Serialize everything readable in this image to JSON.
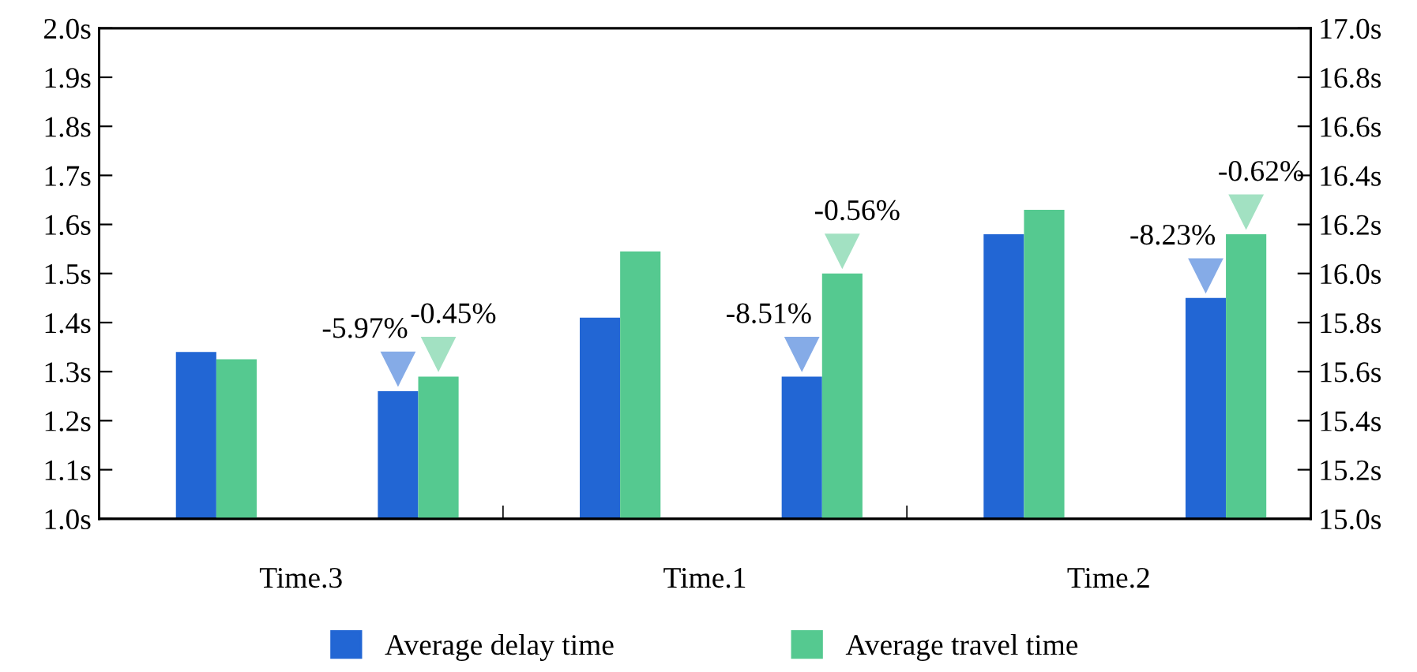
{
  "chart_data": {
    "type": "bar",
    "categories": [
      "Time.3",
      "Time.1",
      "Time.2"
    ],
    "series": [
      {
        "name": "Average delay time",
        "color": "#2266d4",
        "values": [
          1.34,
          1.41,
          1.58
        ]
      },
      {
        "name": "Average travel time",
        "color": "#55c990",
        "axis": "y2",
        "values": [
          15.65,
          16.09,
          16.26
        ]
      },
      {
        "color": "#2266d4",
        "values": [
          1.26,
          1.29,
          1.45
        ]
      },
      {
        "color": "#55c990",
        "axis": "y2",
        "values": [
          15.58,
          16.0,
          16.16
        ]
      }
    ],
    "annotations": [
      "-5.97%",
      "-8.51%",
      "-8.23%",
      "-0.45%",
      "-0.56%",
      "-0.62%"
    ],
    "ylim": [
      1.0,
      2.0
    ],
    "yticks": [
      {
        "value": 1.0,
        "label": "1.0s"
      },
      {
        "value": 1.1,
        "label": "1.1s"
      },
      {
        "value": 1.2,
        "label": "1.2s"
      },
      {
        "value": 1.3,
        "label": "1.3s"
      },
      {
        "value": 1.4,
        "label": "1.4s"
      },
      {
        "value": 1.5,
        "label": "1.5s"
      },
      {
        "value": 1.6,
        "label": "1.6s"
      },
      {
        "value": 1.7,
        "label": "1.7s"
      },
      {
        "value": 1.8,
        "label": "1.8s"
      },
      {
        "value": 1.9,
        "label": "1.9s"
      },
      {
        "value": 2.0,
        "label": "2.0s"
      }
    ],
    "y2lim": [
      15.0,
      17.0
    ],
    "y2ticks": [
      {
        "value": 15.0,
        "label": "15.0s"
      },
      {
        "value": 15.2,
        "label": "15.2s"
      },
      {
        "value": 15.4,
        "label": "15.4s"
      },
      {
        "value": 15.6,
        "label": "15.6s"
      },
      {
        "value": 15.8,
        "label": "15.8s"
      },
      {
        "value": 16.0,
        "label": "16.0s"
      },
      {
        "value": 16.2,
        "label": "16.2s"
      },
      {
        "value": 16.4,
        "label": "16.4s"
      },
      {
        "value": 16.6,
        "label": "16.6s"
      },
      {
        "value": 16.8,
        "label": "16.8s"
      },
      {
        "value": 17.0,
        "label": "17.0s"
      }
    ],
    "grid": false,
    "legend": "bottom"
  }
}
